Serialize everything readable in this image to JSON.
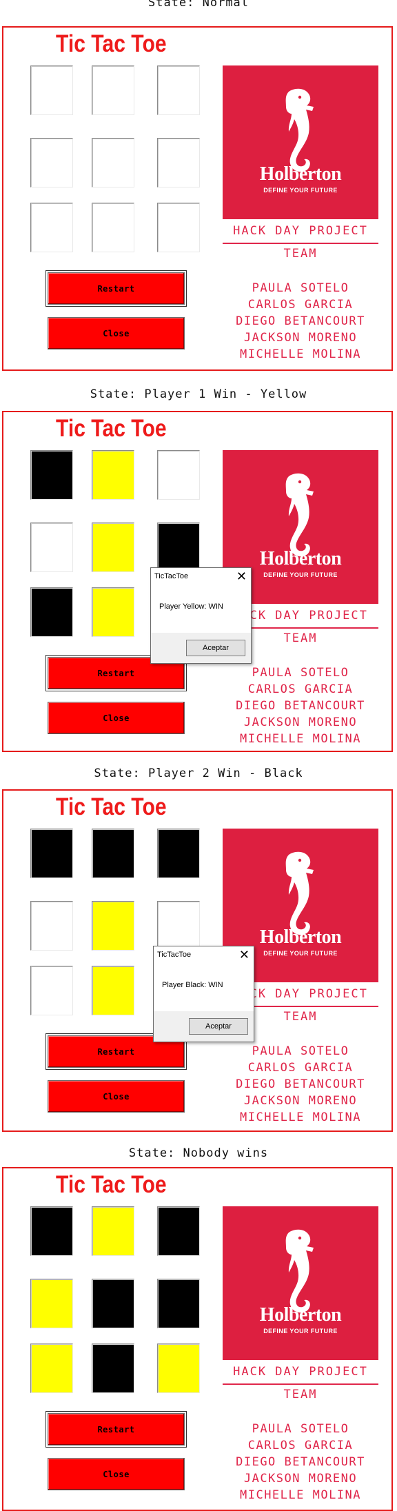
{
  "app": {
    "title": "Tic Tac Toe",
    "restart_label": "Restart",
    "close_label": "Close",
    "logo_word": "Holberton",
    "logo_tagline": "DEFINE YOUR FUTURE",
    "hack_label": "HACK DAY PROJECT",
    "team_label": "TEAM",
    "members": [
      "PAULA SOTELO",
      "CARLOS GARCIA",
      "DIEGO BETANCOURT",
      "JACKSON MORENO",
      "MICHELLE MOLINA"
    ]
  },
  "colors": {
    "accent_red": "#ff0000",
    "title_red": "#ee1b1b",
    "brand_crimson": "#dd1f40",
    "player_yellow": "#ffff00",
    "player_black": "#000000"
  },
  "states": [
    {
      "label": "State: Normal",
      "board": [
        "empty",
        "empty",
        "empty",
        "empty",
        "empty",
        "empty",
        "empty",
        "empty",
        "empty"
      ],
      "dialog": null
    },
    {
      "label": "State: Player 1 Win - Yellow",
      "board": [
        "black",
        "yellow",
        "empty",
        "empty",
        "yellow",
        "black",
        "black",
        "yellow",
        "empty"
      ],
      "dialog": {
        "title": "TicTacToe",
        "message": "Player Yellow: WIN",
        "ok_label": "Aceptar"
      }
    },
    {
      "label": "State: Player 2 Win - Black",
      "board": [
        "black",
        "black",
        "black",
        "empty",
        "yellow",
        "empty",
        "empty",
        "yellow",
        "empty"
      ],
      "dialog": {
        "title": "TicTacToe",
        "message": "Player Black: WIN",
        "ok_label": "Aceptar"
      }
    },
    {
      "label": "State: Nobody wins",
      "board": [
        "black",
        "yellow",
        "black",
        "yellow",
        "black",
        "black",
        "yellow",
        "black",
        "yellow"
      ],
      "dialog": null
    }
  ]
}
